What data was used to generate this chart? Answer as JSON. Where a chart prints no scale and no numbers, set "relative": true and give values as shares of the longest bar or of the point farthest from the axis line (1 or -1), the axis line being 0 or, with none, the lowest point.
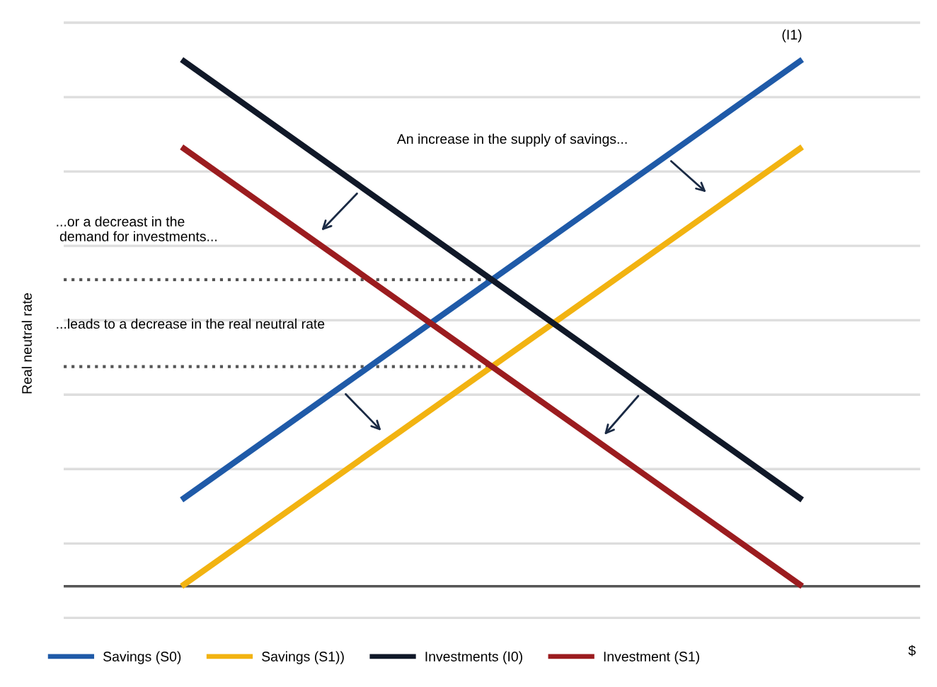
{
  "chart_data": {
    "type": "line",
    "relative": true,
    "categories": [
      null,
      null
    ],
    "ylabel": "Real neutral rate",
    "series": [
      {
        "name": "Savings (S0)",
        "color": "#1f5aa8",
        "values": [
          0.164,
          1
        ]
      },
      {
        "name": "Savings (S1))",
        "color": "#f2b311",
        "values": [
          0,
          0.834
        ]
      },
      {
        "name": "Investments (I0)",
        "color": "#101828",
        "values": [
          1,
          0.164
        ]
      },
      {
        "name": "Investment (S1)",
        "color": "#9b1c1f",
        "values": [
          0.834,
          0
        ]
      }
    ],
    "ref_lines": [
      {
        "axis": "y",
        "value": 0.582,
        "line_style": "dotted",
        "color": "#555555"
      },
      {
        "axis": "y",
        "value": 0.417,
        "line_style": "dotted",
        "color": "#555555"
      }
    ],
    "annotations": [
      "An increase in the supply of savings...",
      "...or a decreast in the\n demand for investments...",
      "...leads to a decrease in the real neutral rate",
      "(I1)",
      "$"
    ],
    "grid": "y",
    "legend": "bottom",
    "marker": "none",
    "line_style": "solid"
  }
}
